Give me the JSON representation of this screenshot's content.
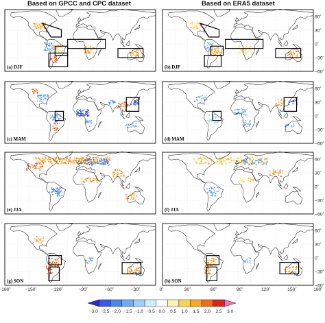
{
  "column_titles": [
    "Based on GPCC and CPC dataset",
    "Based on ERA5 dataset"
  ],
  "chart_data": {
    "type": "heatmap",
    "panels": [
      {
        "label": "(a) DJF",
        "dataset": "Based on GPCC and CPC dataset",
        "season": "DJF"
      },
      {
        "label": "(b) DJF",
        "dataset": "Based on ERA5 dataset",
        "season": "DJF"
      },
      {
        "label": "(c) MAM",
        "dataset": "Based on GPCC and CPC dataset",
        "season": "MAM"
      },
      {
        "label": "(d) MAM",
        "dataset": "Based on ERA5 dataset",
        "season": "MAM"
      },
      {
        "label": "(e) JJA",
        "dataset": "Based on GPCC and CPC dataset",
        "season": "JJA"
      },
      {
        "label": "(f) JJA",
        "dataset": "Based on ERA5 dataset",
        "season": "JJA"
      },
      {
        "label": "(g) SON",
        "dataset": "Based on GPCC and CPC dataset",
        "season": "SON"
      },
      {
        "label": "(h) SON",
        "dataset": "Based on ERA5 dataset",
        "season": "SON"
      }
    ],
    "x_ticks": [
      "−180˚",
      "−150˚",
      "−120˚",
      "−90˚",
      "−60˚",
      "−30˚",
      "0˚",
      "30˚",
      "60˚",
      "90˚",
      "120˚",
      "150˚",
      "180˚"
    ],
    "y_ticks": [
      "60˚",
      "30˚",
      "0˚",
      "−30˚",
      "−60˚"
    ],
    "xlim": [
      -180,
      180
    ],
    "ylim": [
      -60,
      75
    ],
    "colorbar": {
      "ticks": [
        "−3.0",
        "−2.5",
        "−2.0",
        "−1.5",
        "−1.0",
        "−0.5",
        "0.0",
        "0.5",
        "1.0",
        "1.5",
        "2.0",
        "2.5",
        "3.0"
      ],
      "range": [
        -3.0,
        3.0
      ],
      "colors": [
        "#2b2bd0",
        "#3b59e6",
        "#4a86f0",
        "#6fabf5",
        "#9fd0fa",
        "#d3ecff",
        "#ffffff",
        "#fff1b8",
        "#ffd34d",
        "#ffa626",
        "#f46a1c",
        "#d8261a",
        "#f06eb4"
      ]
    },
    "grid": true
  }
}
